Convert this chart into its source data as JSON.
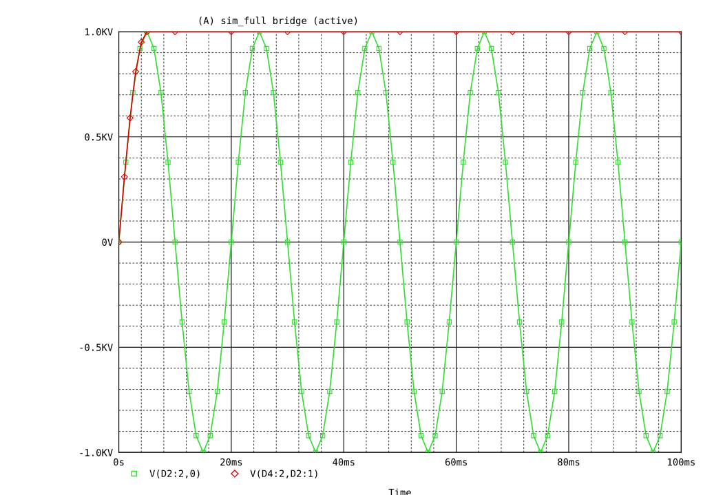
{
  "chart_data": {
    "type": "line",
    "title": "(A) sim_full bridge (active)",
    "xlabel": "Time",
    "xlim": [
      0,
      100
    ],
    "ylim": [
      -1,
      1
    ],
    "xticks": [
      {
        "value": 0,
        "label": "0s"
      },
      {
        "value": 4,
        "label": null
      },
      {
        "value": 8,
        "label": null
      },
      {
        "value": 12,
        "label": null
      },
      {
        "value": 16,
        "label": null
      },
      {
        "value": 20,
        "label": "20ms"
      },
      {
        "value": 24,
        "label": null
      },
      {
        "value": 28,
        "label": null
      },
      {
        "value": 32,
        "label": null
      },
      {
        "value": 36,
        "label": null
      },
      {
        "value": 40,
        "label": "40ms"
      },
      {
        "value": 44,
        "label": null
      },
      {
        "value": 48,
        "label": null
      },
      {
        "value": 52,
        "label": null
      },
      {
        "value": 56,
        "label": null
      },
      {
        "value": 60,
        "label": "60ms"
      },
      {
        "value": 64,
        "label": null
      },
      {
        "value": 68,
        "label": null
      },
      {
        "value": 72,
        "label": null
      },
      {
        "value": 76,
        "label": null
      },
      {
        "value": 80,
        "label": "80ms"
      },
      {
        "value": 84,
        "label": null
      },
      {
        "value": 88,
        "label": null
      },
      {
        "value": 92,
        "label": null
      },
      {
        "value": 96,
        "label": null
      },
      {
        "value": 100,
        "label": "100ms"
      }
    ],
    "yticks": [
      {
        "value": -1,
        "label": "-1.0KV"
      },
      {
        "value": -0.9,
        "label": null
      },
      {
        "value": -0.8,
        "label": null
      },
      {
        "value": -0.7,
        "label": null
      },
      {
        "value": -0.6,
        "label": null
      },
      {
        "value": -0.5,
        "label": "-0.5KV"
      },
      {
        "value": -0.4,
        "label": null
      },
      {
        "value": -0.3,
        "label": null
      },
      {
        "value": -0.2,
        "label": null
      },
      {
        "value": -0.1,
        "label": null
      },
      {
        "value": 0,
        "label": "0V"
      },
      {
        "value": 0.1,
        "label": null
      },
      {
        "value": 0.2,
        "label": null
      },
      {
        "value": 0.3,
        "label": null
      },
      {
        "value": 0.4,
        "label": null
      },
      {
        "value": 0.5,
        "label": "0.5KV"
      },
      {
        "value": 0.6,
        "label": null
      },
      {
        "value": 0.7,
        "label": null
      },
      {
        "value": 0.8,
        "label": null
      },
      {
        "value": 0.9,
        "label": null
      },
      {
        "value": 1,
        "label": "1.0KV"
      }
    ],
    "grid": true,
    "legend": "bottom",
    "series": [
      {
        "name": "V(D2:2,0)",
        "color": "#33dd33",
        "marker": "square",
        "x": [
          0,
          1.25,
          2.5,
          3.75,
          5,
          6.25,
          7.5,
          8.75,
          10,
          11.25,
          12.5,
          13.75,
          15,
          16.25,
          17.5,
          18.75,
          20,
          21.25,
          22.5,
          23.75,
          25,
          26.25,
          27.5,
          28.75,
          30,
          31.25,
          32.5,
          33.75,
          35,
          36.25,
          37.5,
          38.75,
          40,
          41.25,
          42.5,
          43.75,
          45,
          46.25,
          47.5,
          48.75,
          50,
          51.25,
          52.5,
          53.75,
          55,
          56.25,
          57.5,
          58.75,
          60,
          61.25,
          62.5,
          63.75,
          65,
          66.25,
          67.5,
          68.75,
          70,
          71.25,
          72.5,
          73.75,
          75,
          76.25,
          77.5,
          78.75,
          80,
          81.25,
          82.5,
          83.75,
          85,
          86.25,
          87.5,
          88.75,
          90,
          91.25,
          92.5,
          93.75,
          95,
          96.25,
          97.5,
          98.75,
          100
        ],
        "values": [
          0,
          0.38,
          0.71,
          0.92,
          1,
          0.92,
          0.71,
          0.38,
          0,
          -0.38,
          -0.71,
          -0.92,
          -1,
          -0.92,
          -0.71,
          -0.38,
          0,
          0.38,
          0.71,
          0.92,
          1,
          0.92,
          0.71,
          0.38,
          0,
          -0.38,
          -0.71,
          -0.92,
          -1,
          -0.92,
          -0.71,
          -0.38,
          0,
          0.38,
          0.71,
          0.92,
          1,
          0.92,
          0.71,
          0.38,
          0,
          -0.38,
          -0.71,
          -0.92,
          -1,
          -0.92,
          -0.71,
          -0.38,
          0,
          0.38,
          0.71,
          0.92,
          1,
          0.92,
          0.71,
          0.38,
          0,
          -0.38,
          -0.71,
          -0.92,
          -1,
          -0.92,
          -0.71,
          -0.38,
          0,
          0.38,
          0.71,
          0.92,
          1,
          0.92,
          0.71,
          0.38,
          0,
          -0.38,
          -0.71,
          -0.92,
          -1,
          -0.92,
          -0.71,
          -0.38,
          0
        ]
      },
      {
        "name": "V(D4:2,D2:1)",
        "color": "#dd0000",
        "marker": "diamond",
        "x": [
          0,
          1,
          2,
          3,
          4,
          5,
          10,
          20,
          30,
          40,
          50,
          60,
          70,
          80,
          90,
          100
        ],
        "values": [
          0,
          0.31,
          0.59,
          0.81,
          0.95,
          1,
          1,
          1,
          1,
          1,
          1,
          1,
          1,
          1,
          1,
          1
        ]
      }
    ]
  }
}
